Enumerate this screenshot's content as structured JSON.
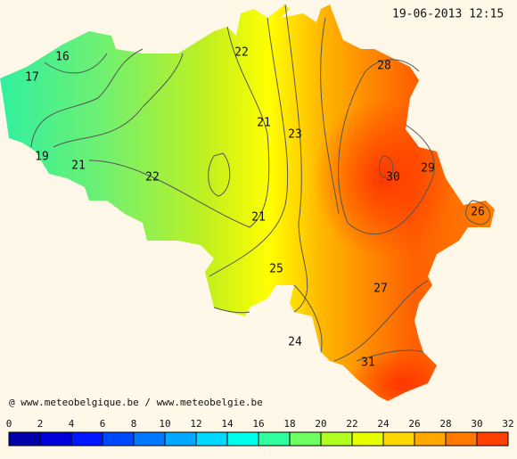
{
  "timestamp": "19-06-2013 12:15",
  "credit": "@ www.meteobelgique.be / www.meteobelgie.be",
  "contour_labels": [
    16,
    17,
    19,
    21,
    22,
    22,
    21,
    23,
    21,
    28,
    29,
    30,
    26,
    25,
    27,
    24,
    31
  ],
  "colorbar": {
    "ticks": [
      0,
      2,
      4,
      6,
      8,
      10,
      12,
      14,
      16,
      18,
      20,
      22,
      24,
      26,
      28,
      30,
      32
    ],
    "colors": [
      "#0000a8",
      "#0000d8",
      "#0018ff",
      "#0048ff",
      "#0078ff",
      "#00a8ff",
      "#00d8ff",
      "#00ffe8",
      "#30ffa0",
      "#70ff60",
      "#b0ff20",
      "#e8ff00",
      "#ffd800",
      "#ffa800",
      "#ff7800",
      "#ff4000"
    ]
  }
}
